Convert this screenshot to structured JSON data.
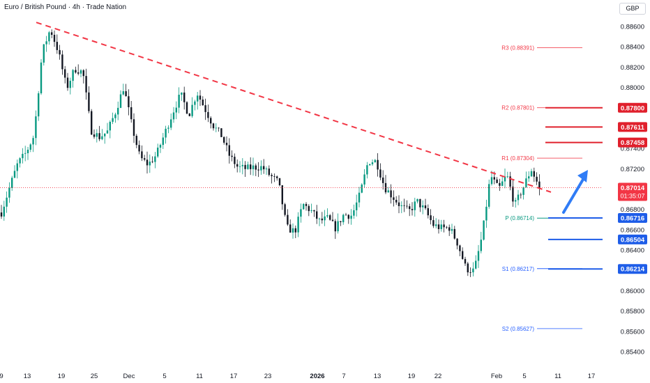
{
  "header": {
    "title": "Euro / British Pound · 4h · Trade Nation",
    "currency": "GBP"
  },
  "chart_data": {
    "type": "candlestick",
    "title": "Euro / British Pound · 4h · Trade Nation",
    "ylim": [
      0.853,
      0.887
    ],
    "y_ticks": [
      "0.88600",
      "0.88400",
      "0.88200",
      "0.88000",
      "0.87800",
      "0.87600",
      "0.87400",
      "0.87200",
      "0.87000",
      "0.86800",
      "0.86600",
      "0.86400",
      "0.86200",
      "0.86000",
      "0.85800",
      "0.85600",
      "0.85400"
    ],
    "x_ticks": [
      "9",
      "13",
      "19",
      "25",
      "Dec",
      "5",
      "11",
      "17",
      "23",
      "2026",
      "7",
      "13",
      "19",
      "22",
      "Feb",
      "5",
      "11",
      "17"
    ],
    "current_price": {
      "value": "0.87014",
      "countdown": "01:35:07"
    },
    "pivot_levels": [
      {
        "label": "R3 (0.88391)",
        "value": 0.88391,
        "color": "#f23645"
      },
      {
        "label": "R2 (0.87801)",
        "value": 0.87801,
        "color": "#f23645"
      },
      {
        "label": "R1 (0.87304)",
        "value": 0.87304,
        "color": "#f23645"
      },
      {
        "label": "P (0.86714)",
        "value": 0.86714,
        "color": "#089981"
      },
      {
        "label": "S1 (0.86217)",
        "value": 0.86217,
        "color": "#2962ff"
      },
      {
        "label": "S2 (0.85627)",
        "value": 0.85627,
        "color": "#2962ff"
      }
    ],
    "resistance_levels": [
      {
        "label": "0.87800",
        "value": 0.878
      },
      {
        "label": "0.87611",
        "value": 0.87611
      },
      {
        "label": "0.87458",
        "value": 0.87458
      }
    ],
    "support_levels": [
      {
        "label": "0.86716",
        "value": 0.86716
      },
      {
        "label": "0.86504",
        "value": 0.86504
      },
      {
        "label": "0.86214",
        "value": 0.86214
      }
    ],
    "trendline": {
      "start": {
        "x": "Nov 15",
        "y": 0.8864
      },
      "end": {
        "x": "Feb 8",
        "y": 0.8697
      }
    },
    "projection_arrow": {
      "from": 0.8676,
      "to": 0.8718
    },
    "price_path": [
      [
        0.8677,
        0.8677
      ],
      [
        0.8693,
        0.871
      ],
      [
        0.871,
        0.874
      ],
      [
        0.8741,
        0.873
      ],
      [
        0.876,
        0.8745
      ],
      [
        0.8839,
        0.883
      ],
      [
        0.8853,
        0.8862
      ],
      [
        0.884,
        0.883
      ],
      [
        0.8805,
        0.8793
      ],
      [
        0.8825,
        0.8812
      ],
      [
        0.8822,
        0.8808
      ],
      [
        0.876,
        0.8756
      ],
      [
        0.8757,
        0.8745
      ],
      [
        0.8755,
        0.8758
      ],
      [
        0.8772,
        0.878
      ],
      [
        0.8796,
        0.8805
      ],
      [
        0.877,
        0.8755
      ],
      [
        0.8722,
        0.874
      ],
      [
        0.873,
        0.8718
      ],
      [
        0.8738,
        0.8729
      ],
      [
        0.8748,
        0.876
      ],
      [
        0.877,
        0.878
      ],
      [
        0.8792,
        0.8795
      ],
      [
        0.8776,
        0.877
      ],
      [
        0.8792,
        0.8798
      ],
      [
        0.8779,
        0.8778
      ],
      [
        0.876,
        0.8765
      ],
      [
        0.875,
        0.8755
      ],
      [
        0.8735,
        0.873
      ],
      [
        0.8723,
        0.872
      ],
      [
        0.8722,
        0.8718
      ],
      [
        0.8723,
        0.872
      ],
      [
        0.8718,
        0.8725
      ],
      [
        0.8716,
        0.871
      ],
      [
        0.8713,
        0.87
      ],
      [
        0.8664,
        0.866
      ],
      [
        0.8656,
        0.866
      ],
      [
        0.8682,
        0.8688
      ],
      [
        0.8677,
        0.868
      ],
      [
        0.8667,
        0.867
      ],
      [
        0.8677,
        0.8665
      ],
      [
        0.8658,
        0.8665
      ],
      [
        0.867,
        0.868
      ],
      [
        0.8678,
        0.867
      ],
      [
        0.869,
        0.87
      ],
      [
        0.8725,
        0.873
      ],
      [
        0.8733,
        0.8722
      ],
      [
        0.8696,
        0.8708
      ],
      [
        0.8695,
        0.869
      ],
      [
        0.8682,
        0.8684
      ],
      [
        0.8676,
        0.868
      ],
      [
        0.8686,
        0.869
      ],
      [
        0.8677,
        0.868
      ],
      [
        0.8669,
        0.866
      ],
      [
        0.8663,
        0.866
      ],
      [
        0.8664,
        0.866
      ],
      [
        0.8652,
        0.864
      ],
      [
        0.8623,
        0.862
      ],
      [
        0.8623,
        0.8616
      ],
      [
        0.865,
        0.866
      ],
      [
        0.8712,
        0.8715
      ],
      [
        0.8697,
        0.8702
      ],
      [
        0.871,
        0.8718
      ],
      [
        0.8686,
        0.8682
      ],
      [
        0.8699,
        0.8704
      ],
      [
        0.8714,
        0.8725
      ],
      [
        0.8701,
        0.8702
      ]
    ]
  }
}
